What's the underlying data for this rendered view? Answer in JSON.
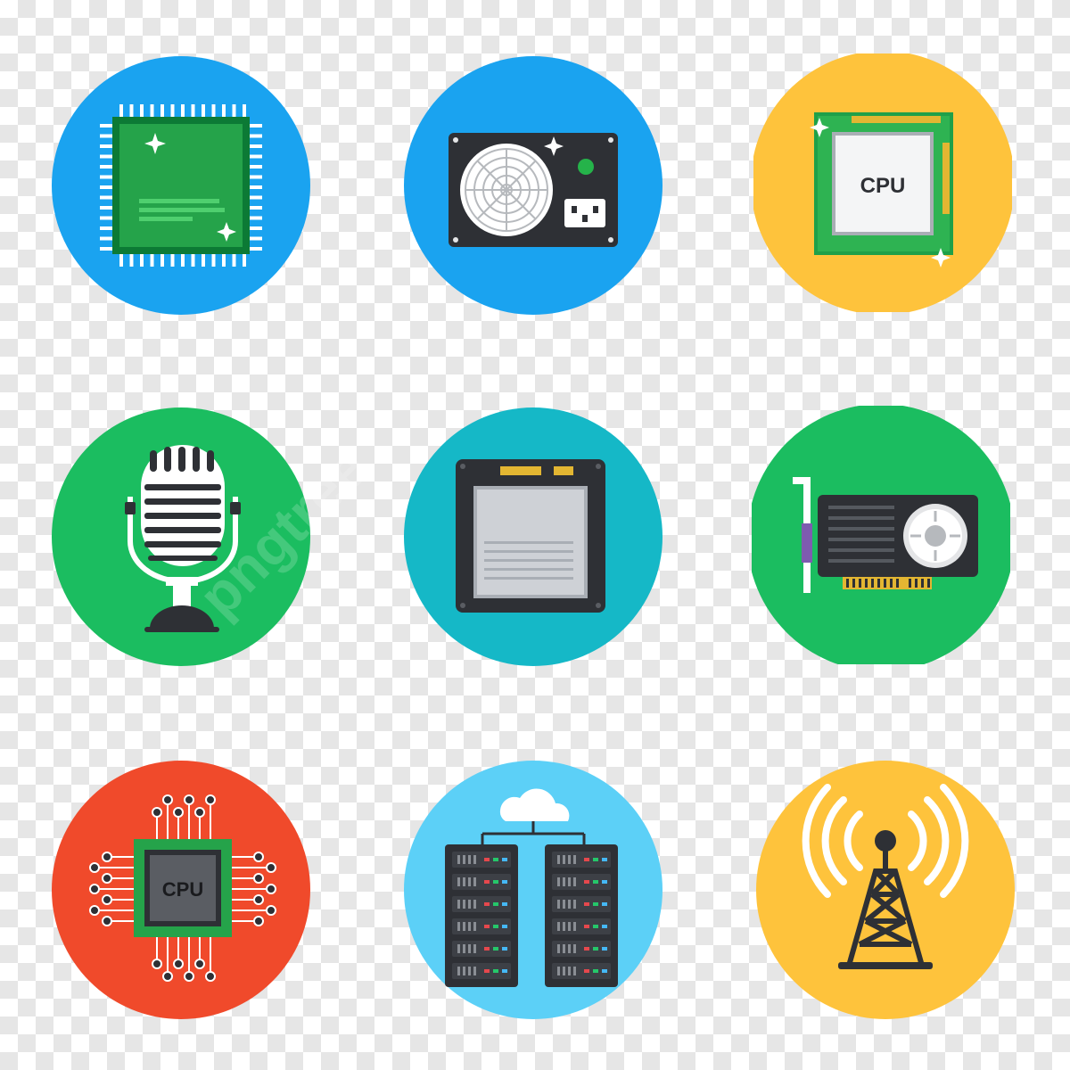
{
  "icons": [
    {
      "name": "microchip",
      "circle_color": "#1aa3f0"
    },
    {
      "name": "power-supply",
      "circle_color": "#1aa3f0"
    },
    {
      "name": "cpu-processor",
      "circle_color": "#fec33c",
      "label": "CPU"
    },
    {
      "name": "microphone",
      "circle_color": "#1bbd60"
    },
    {
      "name": "ssd-chip",
      "circle_color": "#15b8c7"
    },
    {
      "name": "graphics-card",
      "circle_color": "#1bbd60"
    },
    {
      "name": "cpu-circuit",
      "circle_color": "#f04a2b",
      "label": "CPU"
    },
    {
      "name": "cloud-servers",
      "circle_color": "#5cd0f7"
    },
    {
      "name": "signal-tower",
      "circle_color": "#fec33c"
    }
  ],
  "watermark": "pngtree"
}
